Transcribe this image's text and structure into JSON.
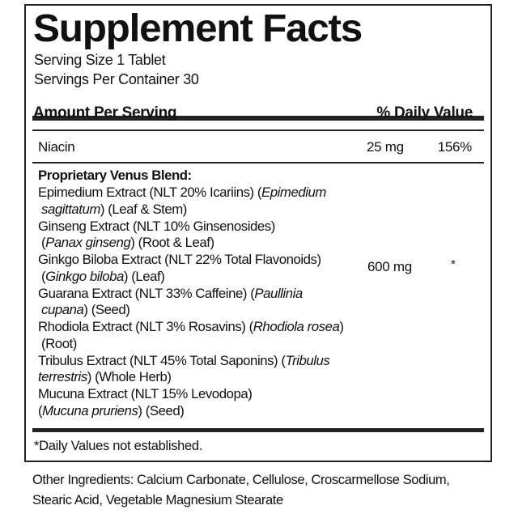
{
  "title": "Supplement Facts",
  "serving_size": "Serving Size 1 Tablet",
  "servings_per_container": "Servings Per Container 30",
  "header": {
    "amount": "Amount Per Serving",
    "daily_value": "% Daily Value"
  },
  "niacin": {
    "name": "Niacin",
    "amount": "25 mg",
    "dv": "156%"
  },
  "blend": {
    "name": "Proprietary Venus Blend:",
    "amount": "600 mg",
    "dv": "*",
    "lines": [
      {
        "pre": "Epimedium Extract (NLT 20% Icariins) (",
        "it": "Epimedium",
        "post": "",
        "indent": false
      },
      {
        "pre": "",
        "it": "sagittatum",
        "post": ") (Leaf & Stem)",
        "indent": true
      },
      {
        "pre": "Ginseng Extract (NLT 10% Ginsenosides)",
        "it": "",
        "post": "",
        "indent": false
      },
      {
        "pre": "(",
        "it": "Panax ginseng",
        "post": ") (Root & Leaf)",
        "indent": true
      },
      {
        "pre": "Ginkgo Biloba Extract (NLT 22% Total Flavonoids)",
        "it": "",
        "post": "",
        "indent": false
      },
      {
        "pre": "(",
        "it": "Ginkgo biloba",
        "post": ") (Leaf)",
        "indent": true
      },
      {
        "pre": "Guarana Extract (NLT 33% Caffeine) (",
        "it": "Paullinia",
        "post": "",
        "indent": false
      },
      {
        "pre": "",
        "it": "cupana",
        "post": ") (Seed)",
        "indent": true
      },
      {
        "pre": "Rhodiola Extract (NLT 3% Rosavins) (",
        "it": "Rhodiola rosea",
        "post": ")",
        "indent": false
      },
      {
        "pre": "(Root)",
        "it": "",
        "post": "",
        "indent": true
      },
      {
        "pre": "Tribulus Extract (NLT 45% Total Saponins) (",
        "it": "Tribulus",
        "post": "",
        "indent": false
      },
      {
        "pre": "",
        "it": "terrestris",
        "post": ") (Whole Herb)",
        "indent": false
      },
      {
        "pre": "Mucuna Extract (NLT 15% Levodopa)",
        "it": "",
        "post": "",
        "indent": false
      },
      {
        "pre": "(",
        "it": "Mucuna pruriens",
        "post": ") (Seed)",
        "indent": false
      }
    ]
  },
  "footnote": "*Daily Values not established.",
  "other_ingredients": {
    "line1": "Other Ingredients: Calcium Carbonate, Cellulose, Croscarmellose Sodium,",
    "line2": "Stearic Acid, Vegetable Magnesium Stearate"
  }
}
